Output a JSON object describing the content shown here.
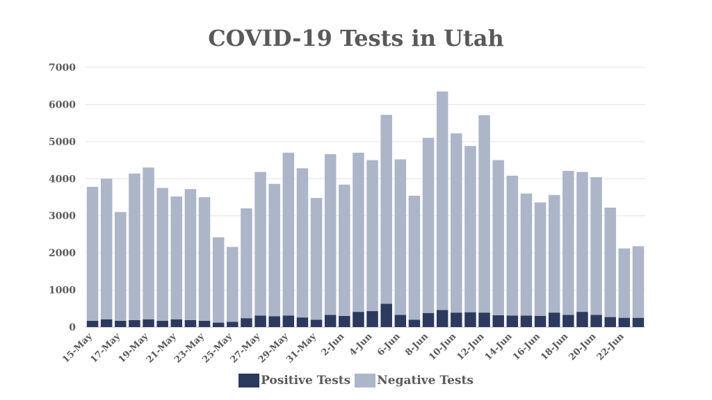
{
  "chart_data": {
    "type": "bar",
    "stacked": true,
    "title": "COVID-19 Tests in Utah",
    "xlabel": "",
    "ylabel": "",
    "ylim": [
      0,
      7000
    ],
    "yticks": [
      0,
      1000,
      2000,
      3000,
      4000,
      5000,
      6000,
      7000
    ],
    "grid": true,
    "legend_position": "bottom",
    "categories": [
      "15-May",
      "16-May",
      "17-May",
      "18-May",
      "19-May",
      "20-May",
      "21-May",
      "22-May",
      "23-May",
      "24-May",
      "25-May",
      "26-May",
      "27-May",
      "28-May",
      "29-May",
      "30-May",
      "31-May",
      "1-Jun",
      "2-Jun",
      "3-Jun",
      "4-Jun",
      "5-Jun",
      "6-Jun",
      "7-Jun",
      "8-Jun",
      "9-Jun",
      "10-Jun",
      "11-Jun",
      "12-Jun",
      "13-Jun",
      "14-Jun",
      "15-Jun",
      "16-Jun",
      "17-Jun",
      "18-Jun",
      "19-Jun",
      "20-Jun",
      "21-Jun",
      "22-Jun",
      "23-Jun"
    ],
    "tick_labels": [
      "15-May",
      "",
      "17-May",
      "",
      "19-May",
      "",
      "21-May",
      "",
      "23-May",
      "",
      "25-May",
      "",
      "27-May",
      "",
      "29-May",
      "",
      "31-May",
      "",
      "2-Jun",
      "",
      "4-Jun",
      "",
      "6-Jun",
      "",
      "8-Jun",
      "",
      "10-Jun",
      "",
      "12-Jun",
      "",
      "14-Jun",
      "",
      "16-Jun",
      "",
      "18-Jun",
      "",
      "20-Jun",
      "",
      "22-Jun",
      ""
    ],
    "series": [
      {
        "name": "Positive Tests",
        "color": "#2c3a5e",
        "values": [
          170,
          210,
          170,
          190,
          210,
          170,
          210,
          190,
          170,
          120,
          140,
          240,
          310,
          290,
          310,
          260,
          200,
          330,
          300,
          410,
          430,
          630,
          330,
          200,
          380,
          460,
          390,
          400,
          390,
          320,
          310,
          310,
          300,
          390,
          330,
          410,
          330,
          270,
          250,
          250
        ]
      },
      {
        "name": "Negative Tests",
        "color": "#adb5c8",
        "values": [
          3610,
          3790,
          2930,
          3950,
          4090,
          3580,
          3310,
          3530,
          3330,
          2300,
          2020,
          2960,
          3870,
          3570,
          4390,
          4020,
          3280,
          4330,
          3540,
          4290,
          4070,
          5090,
          4190,
          3340,
          4720,
          5890,
          4830,
          4480,
          5320,
          4180,
          3770,
          3290,
          3060,
          3170,
          3880,
          3770,
          3710,
          2950,
          1870,
          1930
        ]
      }
    ]
  }
}
